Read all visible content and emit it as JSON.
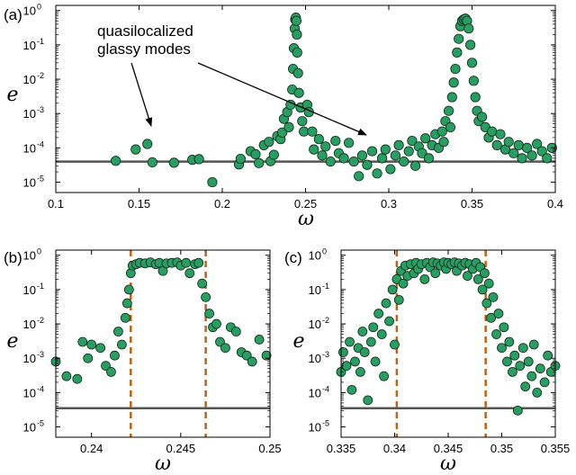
{
  "chart_data": [
    {
      "panel": "(a)",
      "type": "scatter",
      "xlabel": "ω",
      "ylabel": "e",
      "xlim": [
        0.1,
        0.4
      ],
      "ylim_log10": [
        -5.3,
        0.15
      ],
      "x_ticks": [
        "0.1",
        "0.15",
        "0.2",
        "0.25",
        "0.3",
        "0.35",
        "0.4"
      ],
      "x_tick_values": [
        0.1,
        0.15,
        0.2,
        0.25,
        0.3,
        0.35,
        0.4
      ],
      "y_tick_exponents": [
        "-5",
        "-4",
        "-3",
        "-2",
        "-1",
        "0"
      ],
      "y_tick_base": "10",
      "baseline": 4e-05,
      "annotation": [
        "quasilocalized",
        "glassy modes"
      ],
      "points": [
        [
          0.136,
          4.2e-05
        ],
        [
          0.148,
          9e-05
        ],
        [
          0.155,
          0.00013
        ],
        [
          0.158,
          3.8e-05
        ],
        [
          0.171,
          3.7e-05
        ],
        [
          0.182,
          4.5e-05
        ],
        [
          0.186,
          4.7e-05
        ],
        [
          0.194,
          1e-05
        ],
        [
          0.21,
          3.3e-05
        ],
        [
          0.211,
          4.8e-05
        ],
        [
          0.217,
          8e-05
        ],
        [
          0.22,
          6.5e-05
        ],
        [
          0.222,
          3.6e-05
        ],
        [
          0.225,
          0.00012
        ],
        [
          0.228,
          0.00015
        ],
        [
          0.229,
          4.1e-05
        ],
        [
          0.231,
          6.3e-05
        ],
        [
          0.233,
          0.00022
        ],
        [
          0.235,
          0.00018
        ],
        [
          0.236,
          0.00028
        ],
        [
          0.237,
          0.0007
        ],
        [
          0.239,
          0.0011
        ],
        [
          0.24,
          0.0004
        ],
        [
          0.241,
          0.0018
        ],
        [
          0.242,
          0.005
        ],
        [
          0.2425,
          0.02
        ],
        [
          0.243,
          0.08
        ],
        [
          0.2435,
          0.3
        ],
        [
          0.2438,
          0.55
        ],
        [
          0.2442,
          0.62
        ],
        [
          0.2445,
          0.5
        ],
        [
          0.2448,
          0.2
        ],
        [
          0.245,
          0.06
        ],
        [
          0.2455,
          0.015
        ],
        [
          0.246,
          0.004
        ],
        [
          0.247,
          0.0015
        ],
        [
          0.248,
          0.0006
        ],
        [
          0.249,
          0.0003
        ],
        [
          0.251,
          0.0018
        ],
        [
          0.252,
          0.0011
        ],
        [
          0.254,
          0.0003
        ],
        [
          0.255,
          9e-05
        ],
        [
          0.258,
          0.00018
        ],
        [
          0.26,
          6e-05
        ],
        [
          0.262,
          0.00011
        ],
        [
          0.265,
          4e-05
        ],
        [
          0.268,
          0.00016
        ],
        [
          0.27,
          7e-05
        ],
        [
          0.273,
          5e-05
        ],
        [
          0.276,
          0.00014
        ],
        [
          0.279,
          4e-05
        ],
        [
          0.282,
          1.5e-05
        ],
        [
          0.284,
          6e-05
        ],
        [
          0.287,
          3.2e-05
        ],
        [
          0.29,
          8e-05
        ],
        [
          0.293,
          1.8e-05
        ],
        [
          0.296,
          5e-05
        ],
        [
          0.298,
          9e-05
        ],
        [
          0.301,
          2.4e-05
        ],
        [
          0.304,
          6e-05
        ],
        [
          0.306,
          0.00012
        ],
        [
          0.309,
          4e-05
        ],
        [
          0.312,
          8e-05
        ],
        [
          0.314,
          0.00016
        ],
        [
          0.316,
          3e-05
        ],
        [
          0.318,
          0.00011
        ],
        [
          0.32,
          7e-05
        ],
        [
          0.322,
          0.00019
        ],
        [
          0.324,
          5e-05
        ],
        [
          0.326,
          0.00012
        ],
        [
          0.328,
          0.00025
        ],
        [
          0.33,
          0.0001
        ],
        [
          0.332,
          0.0003
        ],
        [
          0.333,
          0.00015
        ],
        [
          0.334,
          0.0006
        ],
        [
          0.336,
          0.0012
        ],
        [
          0.337,
          0.0004
        ],
        [
          0.338,
          0.003
        ],
        [
          0.339,
          0.008
        ],
        [
          0.34,
          0.02
        ],
        [
          0.341,
          0.06
        ],
        [
          0.342,
          0.15
        ],
        [
          0.343,
          0.35
        ],
        [
          0.344,
          0.5
        ],
        [
          0.345,
          0.55
        ],
        [
          0.346,
          0.58
        ],
        [
          0.347,
          0.5
        ],
        [
          0.348,
          0.3
        ],
        [
          0.349,
          0.1
        ],
        [
          0.35,
          0.03
        ],
        [
          0.351,
          0.009
        ],
        [
          0.352,
          0.003
        ],
        [
          0.353,
          0.0012
        ],
        [
          0.354,
          0.0006
        ],
        [
          0.356,
          0.0008
        ],
        [
          0.358,
          0.0004
        ],
        [
          0.36,
          0.0002
        ],
        [
          0.362,
          0.0003
        ],
        [
          0.365,
          0.00012
        ],
        [
          0.367,
          0.00025
        ],
        [
          0.37,
          9e-05
        ],
        [
          0.372,
          0.00015
        ],
        [
          0.375,
          7e-05
        ],
        [
          0.378,
          0.00012
        ],
        [
          0.38,
          5e-05
        ],
        [
          0.383,
          0.0001
        ],
        [
          0.386,
          6e-05
        ],
        [
          0.389,
          0.00013
        ],
        [
          0.392,
          8e-05
        ],
        [
          0.395,
          5e-05
        ],
        [
          0.398,
          0.0001
        ]
      ]
    },
    {
      "panel": "(b)",
      "type": "scatter",
      "xlabel": "ω",
      "ylabel": "e",
      "xlim": [
        0.238,
        0.25
      ],
      "ylim_log10": [
        -5.3,
        0.15
      ],
      "x_ticks": [
        "0.24",
        "0.245",
        "0.25"
      ],
      "x_tick_values": [
        0.24,
        0.245,
        0.25
      ],
      "y_tick_exponents": [
        "-5",
        "-4",
        "-3",
        "-2",
        "-1",
        "0"
      ],
      "y_tick_base": "10",
      "baseline": 3.5e-05,
      "vlines": [
        0.2422,
        0.2464
      ],
      "points": [
        [
          0.238,
          0.0008
        ],
        [
          0.2386,
          0.0003
        ],
        [
          0.2392,
          0.00025
        ],
        [
          0.2395,
          0.003
        ],
        [
          0.2398,
          0.001
        ],
        [
          0.24,
          0.0025
        ],
        [
          0.2405,
          0.002
        ],
        [
          0.2408,
          0.0006
        ],
        [
          0.2411,
          0.0004
        ],
        [
          0.2413,
          0.0012
        ],
        [
          0.2415,
          0.006
        ],
        [
          0.2417,
          0.0025
        ],
        [
          0.2419,
          0.015
        ],
        [
          0.242,
          0.04
        ],
        [
          0.2421,
          0.1
        ],
        [
          0.2422,
          0.3
        ],
        [
          0.2423,
          0.5
        ],
        [
          0.2425,
          0.55
        ],
        [
          0.2427,
          0.6
        ],
        [
          0.243,
          0.58
        ],
        [
          0.2433,
          0.62
        ],
        [
          0.2436,
          0.55
        ],
        [
          0.2438,
          0.6
        ],
        [
          0.244,
          0.35
        ],
        [
          0.2442,
          0.58
        ],
        [
          0.2445,
          0.6
        ],
        [
          0.2448,
          0.62
        ],
        [
          0.245,
          0.5
        ],
        [
          0.2453,
          0.6
        ],
        [
          0.2455,
          0.3
        ],
        [
          0.2458,
          0.55
        ],
        [
          0.246,
          0.6
        ],
        [
          0.2462,
          0.15
        ],
        [
          0.2464,
          0.06
        ],
        [
          0.2466,
          0.02
        ],
        [
          0.2468,
          0.008
        ],
        [
          0.247,
          0.01
        ],
        [
          0.2472,
          0.003
        ],
        [
          0.2475,
          0.002
        ],
        [
          0.2478,
          0.008
        ],
        [
          0.2481,
          0.006
        ],
        [
          0.2484,
          0.0015
        ],
        [
          0.2487,
          0.0012
        ],
        [
          0.249,
          0.0008
        ],
        [
          0.2494,
          0.0035
        ],
        [
          0.2498,
          0.0012
        ]
      ]
    },
    {
      "panel": "(c)",
      "type": "scatter",
      "xlabel": "ω",
      "ylabel": "e",
      "xlim": [
        0.335,
        0.355
      ],
      "ylim_log10": [
        -5.3,
        0.15
      ],
      "x_ticks": [
        "0.335",
        "0.34",
        "0.345",
        "0.35",
        "0.355"
      ],
      "x_tick_values": [
        0.335,
        0.34,
        0.345,
        0.35,
        0.355
      ],
      "y_tick_exponents": [
        "-5",
        "-4",
        "-3",
        "-2",
        "-1",
        "0"
      ],
      "y_tick_base": "10",
      "baseline": 3.5e-05,
      "vlines": [
        0.3402,
        0.3485
      ],
      "points": [
        [
          0.335,
          0.0004
        ],
        [
          0.3352,
          0.0015
        ],
        [
          0.3355,
          0.0006
        ],
        [
          0.3358,
          0.003
        ],
        [
          0.336,
          0.00012
        ],
        [
          0.3363,
          0.0008
        ],
        [
          0.3366,
          0.002
        ],
        [
          0.3368,
          0.0004
        ],
        [
          0.337,
          0.006
        ],
        [
          0.3372,
          0.0015
        ],
        [
          0.3375,
          6e-05
        ],
        [
          0.3378,
          0.003
        ],
        [
          0.338,
          0.008
        ],
        [
          0.3382,
          0.0008
        ],
        [
          0.3385,
          0.02
        ],
        [
          0.3388,
          0.005
        ],
        [
          0.339,
          0.0003
        ],
        [
          0.3392,
          0.04
        ],
        [
          0.3395,
          0.012
        ],
        [
          0.3398,
          0.1
        ],
        [
          0.34,
          0.0025
        ],
        [
          0.3402,
          0.2
        ],
        [
          0.3404,
          0.05
        ],
        [
          0.3406,
          0.35
        ],
        [
          0.3408,
          0.15
        ],
        [
          0.341,
          0.5
        ],
        [
          0.3412,
          0.25
        ],
        [
          0.3415,
          0.55
        ],
        [
          0.3418,
          0.3
        ],
        [
          0.342,
          0.6
        ],
        [
          0.3422,
          0.4
        ],
        [
          0.3425,
          0.55
        ],
        [
          0.3428,
          0.2
        ],
        [
          0.343,
          0.6
        ],
        [
          0.3433,
          0.45
        ],
        [
          0.3436,
          0.62
        ],
        [
          0.3438,
          0.3
        ],
        [
          0.344,
          0.58
        ],
        [
          0.3443,
          0.5
        ],
        [
          0.3446,
          0.62
        ],
        [
          0.3448,
          0.4
        ],
        [
          0.345,
          0.6
        ],
        [
          0.3453,
          0.55
        ],
        [
          0.3456,
          0.62
        ],
        [
          0.3458,
          0.35
        ],
        [
          0.346,
          0.58
        ],
        [
          0.3463,
          0.5
        ],
        [
          0.3466,
          0.6
        ],
        [
          0.3468,
          0.25
        ],
        [
          0.347,
          0.55
        ],
        [
          0.3473,
          0.4
        ],
        [
          0.3476,
          0.6
        ],
        [
          0.3478,
          0.2
        ],
        [
          0.348,
          0.45
        ],
        [
          0.3482,
          0.1
        ],
        [
          0.3484,
          0.3
        ],
        [
          0.3486,
          0.04
        ],
        [
          0.3488,
          0.15
        ],
        [
          0.349,
          0.015
        ],
        [
          0.3492,
          0.06
        ],
        [
          0.3495,
          0.005
        ],
        [
          0.3497,
          0.02
        ],
        [
          0.35,
          0.002
        ],
        [
          0.3502,
          0.008
        ],
        [
          0.3505,
          0.0008
        ],
        [
          0.3507,
          0.003
        ],
        [
          0.351,
          0.0004
        ],
        [
          0.3512,
          0.0012
        ],
        [
          0.3515,
          3e-05
        ],
        [
          0.3517,
          0.0006
        ],
        [
          0.352,
          0.002
        ],
        [
          0.3522,
          0.00015
        ],
        [
          0.3525,
          0.0008
        ],
        [
          0.3528,
          0.0003
        ],
        [
          0.353,
          0.0025
        ],
        [
          0.3533,
          0.0001
        ],
        [
          0.3536,
          0.0005
        ],
        [
          0.354,
          0.0002
        ],
        [
          0.3543,
          0.0012
        ],
        [
          0.3546,
          0.0004
        ],
        [
          0.355,
          0.0006
        ]
      ]
    }
  ],
  "colors": {
    "marker_fill": "#2a9d62",
    "marker_edge": "#0b2a18",
    "baseline": "#555555",
    "vline": "#b5651d"
  }
}
